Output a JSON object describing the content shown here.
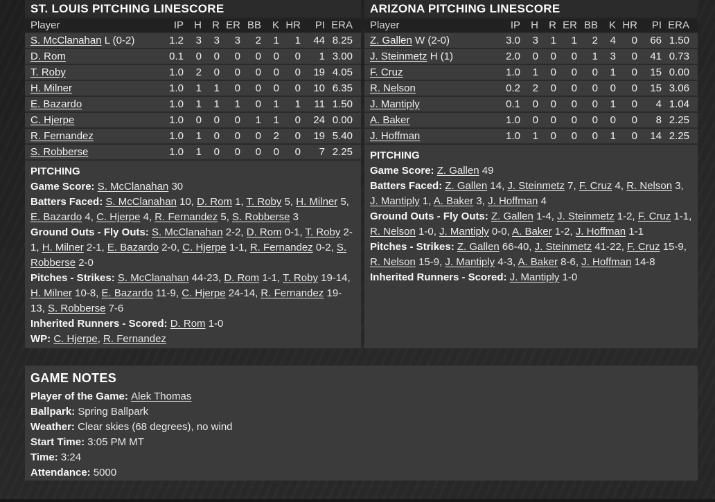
{
  "colors": {
    "page_background": "#242424",
    "panel_background": "#3b3b3b",
    "panel_title_background": "#2b2b2b",
    "table_header_background": "#212121",
    "row_separator": "#2a2a2a",
    "text": "#ececec"
  },
  "left_panel": {
    "title": "ST. LOUIS PITCHING LINESCORE",
    "columns": [
      "Player",
      "IP",
      "H",
      "R",
      "ER",
      "BB",
      "K",
      "HR",
      "PI",
      "ERA"
    ],
    "rows": [
      {
        "player": "S. McClanahan",
        "suffix": " L (0-2)",
        "stats": [
          "1.2",
          "3",
          "3",
          "3",
          "2",
          "1",
          "1",
          "44",
          "8.25"
        ]
      },
      {
        "player": "D. Rom",
        "suffix": "",
        "stats": [
          "0.1",
          "0",
          "0",
          "0",
          "0",
          "0",
          "0",
          "1",
          "3.00"
        ]
      },
      {
        "player": "T. Roby",
        "suffix": "",
        "stats": [
          "1.0",
          "2",
          "0",
          "0",
          "0",
          "0",
          "0",
          "19",
          "4.05"
        ]
      },
      {
        "player": "H. Milner",
        "suffix": "",
        "stats": [
          "1.0",
          "1",
          "1",
          "0",
          "0",
          "0",
          "0",
          "10",
          "6.35"
        ]
      },
      {
        "player": "E. Bazardo",
        "suffix": "",
        "stats": [
          "1.0",
          "1",
          "1",
          "1",
          "0",
          "1",
          "1",
          "11",
          "1.50"
        ]
      },
      {
        "player": "C. Hjerpe",
        "suffix": "",
        "stats": [
          "1.0",
          "0",
          "0",
          "0",
          "1",
          "1",
          "0",
          "24",
          "0.00"
        ]
      },
      {
        "player": "R. Fernandez",
        "suffix": "",
        "stats": [
          "1.0",
          "1",
          "0",
          "0",
          "0",
          "2",
          "0",
          "19",
          "5.40"
        ]
      },
      {
        "player": "S. Robberse",
        "suffix": "",
        "stats": [
          "1.0",
          "1",
          "0",
          "0",
          "0",
          "0",
          "0",
          "7",
          "2.25"
        ]
      }
    ],
    "notes": {
      "lines": [
        {
          "label": "PITCHING",
          "segments": []
        },
        {
          "label": "Game Score:",
          "segments": [
            {
              "t": "S. McClanahan",
              "u": true
            },
            {
              "t": " 30"
            }
          ]
        },
        {
          "label": "Batters Faced:",
          "segments": [
            {
              "t": "S. McClanahan",
              "u": true
            },
            {
              "t": " 10, "
            },
            {
              "t": "D. Rom",
              "u": true
            },
            {
              "t": " 1, "
            },
            {
              "t": "T. Roby",
              "u": true
            },
            {
              "t": " 5, "
            },
            {
              "t": "H. Milner",
              "u": true
            },
            {
              "t": " 5, "
            },
            {
              "t": "E. Bazardo",
              "u": true
            },
            {
              "t": " 4, "
            },
            {
              "t": "C. Hjerpe",
              "u": true
            },
            {
              "t": " 4, "
            },
            {
              "t": "R. Fernandez",
              "u": true
            },
            {
              "t": " 5, "
            },
            {
              "t": "S. Robberse",
              "u": true
            },
            {
              "t": " 3"
            }
          ]
        },
        {
          "label": "Ground Outs - Fly Outs:",
          "segments": [
            {
              "t": "S. McClanahan",
              "u": true
            },
            {
              "t": " 2-2, "
            },
            {
              "t": "D. Rom",
              "u": true
            },
            {
              "t": " 0-1, "
            },
            {
              "t": "T. Roby",
              "u": true
            },
            {
              "t": " 2-1, "
            },
            {
              "t": "H. Milner",
              "u": true
            },
            {
              "t": " 2-1, "
            },
            {
              "t": "E. Bazardo",
              "u": true
            },
            {
              "t": " 2-0, "
            },
            {
              "t": "C. Hjerpe",
              "u": true
            },
            {
              "t": " 1-1, "
            },
            {
              "t": "R. Fernandez",
              "u": true
            },
            {
              "t": " 0-2, "
            },
            {
              "t": "S. Robberse",
              "u": true
            },
            {
              "t": " 2-0"
            }
          ]
        },
        {
          "label": "Pitches - Strikes:",
          "segments": [
            {
              "t": "S. McClanahan",
              "u": true
            },
            {
              "t": " 44-23, "
            },
            {
              "t": "D. Rom",
              "u": true
            },
            {
              "t": " 1-1, "
            },
            {
              "t": "T. Roby",
              "u": true
            },
            {
              "t": " 19-14, "
            },
            {
              "t": "H. Milner",
              "u": true
            },
            {
              "t": " 10-8, "
            },
            {
              "t": "E. Bazardo",
              "u": true
            },
            {
              "t": " 11-9, "
            },
            {
              "t": "C. Hjerpe",
              "u": true
            },
            {
              "t": " 24-14, "
            },
            {
              "t": "R. Fernandez",
              "u": true
            },
            {
              "t": " 19-13, "
            },
            {
              "t": "S. Robberse",
              "u": true
            },
            {
              "t": " 7-6"
            }
          ]
        },
        {
          "label": "Inherited Runners - Scored:",
          "segments": [
            {
              "t": "D. Rom",
              "u": true
            },
            {
              "t": " 1-0"
            }
          ]
        },
        {
          "label": "WP:",
          "segments": [
            {
              "t": "C. Hjerpe",
              "u": true
            },
            {
              "t": ", "
            },
            {
              "t": "R. Fernandez",
              "u": true
            }
          ]
        }
      ]
    }
  },
  "right_panel": {
    "title": "ARIZONA PITCHING LINESCORE",
    "columns": [
      "Player",
      "IP",
      "H",
      "R",
      "ER",
      "BB",
      "K",
      "HR",
      "PI",
      "ERA"
    ],
    "rows": [
      {
        "player": "Z. Gallen",
        "suffix": " W (2-0)",
        "stats": [
          "3.0",
          "3",
          "1",
          "1",
          "2",
          "4",
          "0",
          "66",
          "1.50"
        ]
      },
      {
        "player": "J. Steinmetz",
        "suffix": " H (1)",
        "stats": [
          "2.0",
          "0",
          "0",
          "0",
          "1",
          "3",
          "0",
          "41",
          "0.73"
        ]
      },
      {
        "player": "F. Cruz",
        "suffix": "",
        "stats": [
          "1.0",
          "1",
          "0",
          "0",
          "0",
          "1",
          "0",
          "15",
          "0.00"
        ]
      },
      {
        "player": "R. Nelson",
        "suffix": "",
        "stats": [
          "0.2",
          "2",
          "0",
          "0",
          "0",
          "0",
          "0",
          "15",
          "3.06"
        ]
      },
      {
        "player": "J. Mantiply",
        "suffix": "",
        "stats": [
          "0.1",
          "0",
          "0",
          "0",
          "0",
          "1",
          "0",
          "4",
          "1.04"
        ]
      },
      {
        "player": "A. Baker",
        "suffix": "",
        "stats": [
          "1.0",
          "0",
          "0",
          "0",
          "0",
          "0",
          "0",
          "8",
          "2.25"
        ]
      },
      {
        "player": "J. Hoffman",
        "suffix": "",
        "stats": [
          "1.0",
          "1",
          "0",
          "0",
          "0",
          "1",
          "0",
          "14",
          "2.25"
        ]
      }
    ],
    "notes": {
      "lines": [
        {
          "label": "PITCHING",
          "segments": []
        },
        {
          "label": "Game Score:",
          "segments": [
            {
              "t": "Z. Gallen",
              "u": true
            },
            {
              "t": " 49"
            }
          ]
        },
        {
          "label": "Batters Faced:",
          "segments": [
            {
              "t": "Z. Gallen",
              "u": true
            },
            {
              "t": " 14, "
            },
            {
              "t": "J. Steinmetz",
              "u": true
            },
            {
              "t": " 7, "
            },
            {
              "t": "F. Cruz",
              "u": true
            },
            {
              "t": " 4, "
            },
            {
              "t": "R. Nelson",
              "u": true
            },
            {
              "t": " 3, "
            },
            {
              "t": "J. Mantiply",
              "u": true
            },
            {
              "t": " 1, "
            },
            {
              "t": "A. Baker",
              "u": true
            },
            {
              "t": " 3, "
            },
            {
              "t": "J. Hoffman",
              "u": true
            },
            {
              "t": " 4"
            }
          ]
        },
        {
          "label": "Ground Outs - Fly Outs:",
          "segments": [
            {
              "t": "Z. Gallen",
              "u": true
            },
            {
              "t": " 1-4, "
            },
            {
              "t": "J. Steinmetz",
              "u": true
            },
            {
              "t": " 1-2, "
            },
            {
              "t": "F. Cruz",
              "u": true
            },
            {
              "t": " 1-1, "
            },
            {
              "t": "R. Nelson",
              "u": true
            },
            {
              "t": " 1-0, "
            },
            {
              "t": "J. Mantiply",
              "u": true
            },
            {
              "t": " 0-0, "
            },
            {
              "t": "A. Baker",
              "u": true
            },
            {
              "t": " 1-2, "
            },
            {
              "t": "J. Hoffman",
              "u": true
            },
            {
              "t": " 1-1"
            }
          ]
        },
        {
          "label": "Pitches - Strikes:",
          "segments": [
            {
              "t": "Z. Gallen",
              "u": true
            },
            {
              "t": " 66-40, "
            },
            {
              "t": "J. Steinmetz",
              "u": true
            },
            {
              "t": " 41-22, "
            },
            {
              "t": "F. Cruz",
              "u": true
            },
            {
              "t": " 15-9, "
            },
            {
              "t": "R. Nelson",
              "u": true
            },
            {
              "t": " 15-9, "
            },
            {
              "t": "J. Mantiply",
              "u": true
            },
            {
              "t": " 4-3, "
            },
            {
              "t": "A. Baker",
              "u": true
            },
            {
              "t": " 8-6, "
            },
            {
              "t": "J. Hoffman",
              "u": true
            },
            {
              "t": " 14-8"
            }
          ]
        },
        {
          "label": "Inherited Runners - Scored:",
          "segments": [
            {
              "t": "J. Mantiply",
              "u": true
            },
            {
              "t": " 1-0"
            }
          ]
        }
      ]
    }
  },
  "game_notes": {
    "title": "GAME NOTES",
    "notes": {
      "lines": [
        {
          "label": "Player of the Game:",
          "segments": [
            {
              "t": "Alek Thomas",
              "u": true
            }
          ]
        },
        {
          "label": "Ballpark:",
          "segments": [
            {
              "t": "Spring Ballpark"
            }
          ]
        },
        {
          "label": "Weather:",
          "segments": [
            {
              "t": "Clear skies (68 degrees), no wind"
            }
          ]
        },
        {
          "label": "Start Time:",
          "segments": [
            {
              "t": "3:05 PM MT"
            }
          ]
        },
        {
          "label": "Time:",
          "segments": [
            {
              "t": "3:24"
            }
          ]
        },
        {
          "label": "Attendance:",
          "segments": [
            {
              "t": "5000"
            }
          ]
        }
      ]
    }
  }
}
